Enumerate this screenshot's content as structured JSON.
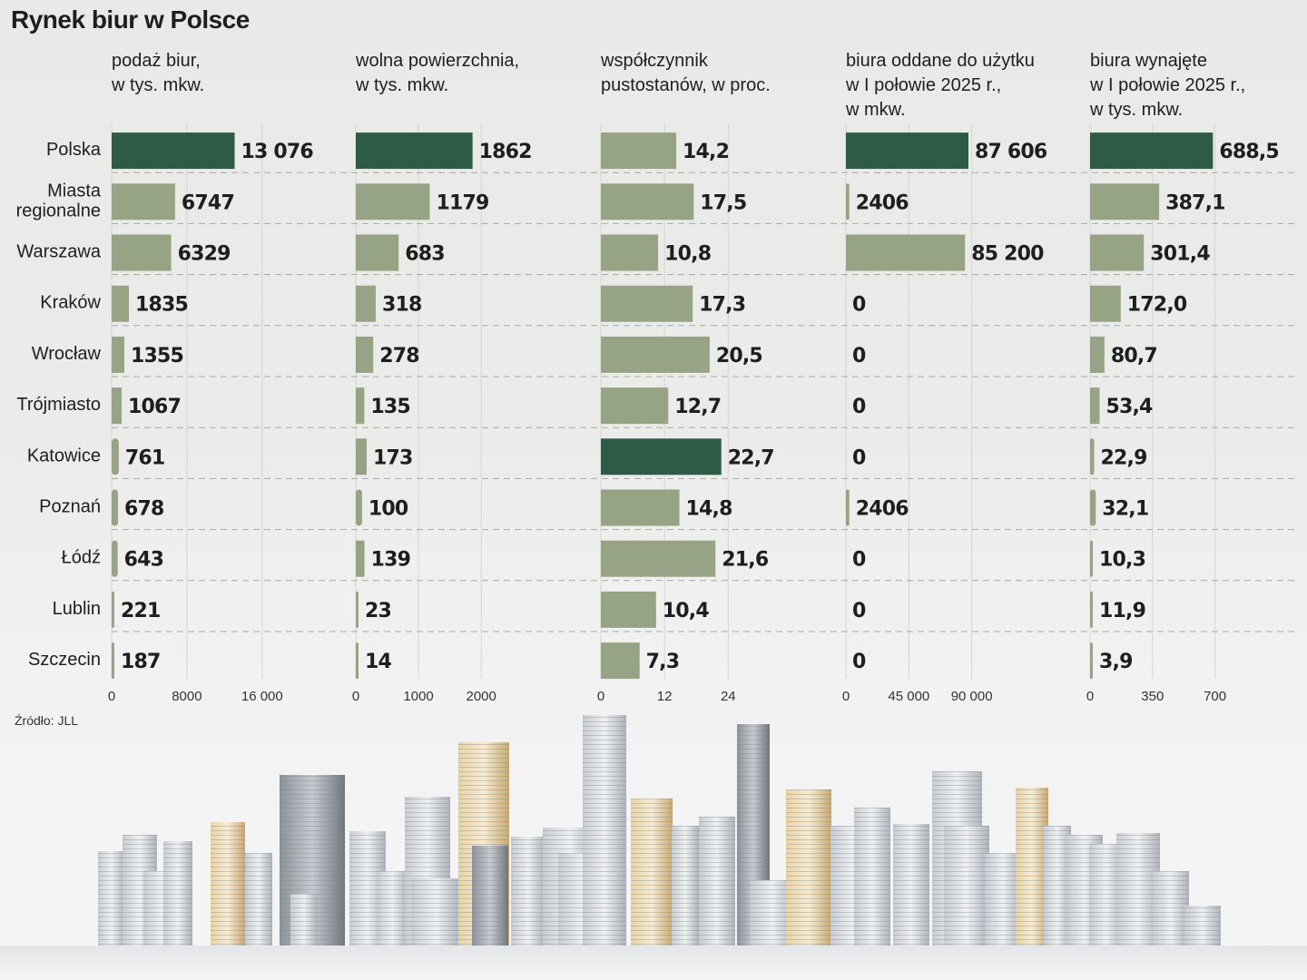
{
  "title": "Rynek biur w Polsce",
  "source": "Źródło: JLL",
  "colors": {
    "highlight": "#2e5b45",
    "bar": "#97a385",
    "background": "#ebecea",
    "text": "#1e1e1e",
    "grid": "#d4d5d3"
  },
  "chart_data": {
    "type": "bar",
    "orientation": "horizontal",
    "title": "Rynek biur w Polsce",
    "categories": [
      "Polska",
      "Miasta regionalne",
      "Warszawa",
      "Kraków",
      "Wrocław",
      "Trójmiasto",
      "Katowice",
      "Poznań",
      "Łódź",
      "Lublin",
      "Szczecin"
    ],
    "category_labels": [
      [
        "Polska"
      ],
      [
        "Miasta",
        "regionalne"
      ],
      [
        "Warszawa"
      ],
      [
        "Kraków"
      ],
      [
        "Wrocław"
      ],
      [
        "Trójmiasto"
      ],
      [
        "Katowice"
      ],
      [
        "Poznań"
      ],
      [
        "Łódź"
      ],
      [
        "Lublin"
      ],
      [
        "Szczecin"
      ]
    ],
    "grid": true,
    "panels": [
      {
        "name": "podaz-biur",
        "title": "podaż biur,\nw tys. mkw.",
        "values": [
          13076,
          6747,
          6329,
          1835,
          1355,
          1067,
          761,
          678,
          643,
          221,
          187
        ],
        "labels": [
          "13 076",
          "6747",
          "6329",
          "1835",
          "1355",
          "1067",
          "761",
          "678",
          "643",
          "221",
          "187"
        ],
        "highlight_index": 0,
        "xlim": [
          0,
          22000
        ],
        "ticks": [
          0,
          8000,
          16000
        ],
        "tick_labels": [
          "0",
          "8000",
          "16 000"
        ]
      },
      {
        "name": "wolna-powierzchnia",
        "title": "wolna powierzchnia,\nw tys. mkw.",
        "values": [
          1862,
          1179,
          683,
          318,
          278,
          135,
          173,
          100,
          139,
          23,
          14
        ],
        "labels": [
          "1862",
          "1179",
          "683",
          "318",
          "278",
          "135",
          "173",
          "100",
          "139",
          "23",
          "14"
        ],
        "highlight_index": 0,
        "xlim": [
          0,
          3300
        ],
        "ticks": [
          0,
          1000,
          2000
        ],
        "tick_labels": [
          "0",
          "1000",
          "2000"
        ]
      },
      {
        "name": "wspolczynnik-pustostanow",
        "title": "współczynnik\npustostanów, w proc.",
        "values": [
          14.2,
          17.5,
          10.8,
          17.3,
          20.5,
          12.7,
          22.7,
          14.8,
          21.6,
          10.4,
          7.3
        ],
        "labels": [
          "14,2",
          "17,5",
          "10,8",
          "17,3",
          "20,5",
          "12,7",
          "22,7",
          "14,8",
          "21,6",
          "10,4",
          "7,3"
        ],
        "highlight_index": 6,
        "xlim": [
          0,
          39
        ],
        "ticks": [
          0,
          12,
          24
        ],
        "tick_labels": [
          "0",
          "12",
          "24"
        ]
      },
      {
        "name": "biura-oddane",
        "title": "biura oddane do użytku\nw I połowie 2025 r.,\nw mkw.",
        "values": [
          87606,
          2406,
          85200,
          0,
          0,
          0,
          0,
          2406,
          0,
          0,
          0
        ],
        "labels": [
          "87 606",
          "2406",
          "85 200",
          "0",
          "0",
          "0",
          "0",
          "2406",
          "0",
          "0",
          "0"
        ],
        "highlight_index": 0,
        "xlim": [
          0,
          148000
        ],
        "ticks": [
          0,
          45000,
          90000
        ],
        "tick_labels": [
          "0",
          "45 000",
          "90 000"
        ]
      },
      {
        "name": "biura-wynajete",
        "title": "biura wynajęte\nw I połowie 2025 r.,\nw tys. mkw.",
        "values": [
          688.5,
          387.1,
          301.4,
          172.0,
          80.7,
          53.4,
          22.9,
          32.1,
          10.3,
          11.9,
          3.9
        ],
        "labels": [
          "688,5",
          "387,1",
          "301,4",
          "172,0",
          "80,7",
          "53,4",
          "22,9",
          "32,1",
          "10,3",
          "11,9",
          "3,9"
        ],
        "highlight_index": 0,
        "xlim": [
          0,
          1160
        ],
        "ticks": [
          0,
          350,
          700
        ],
        "tick_labels": [
          "0",
          "350",
          "700"
        ]
      }
    ]
  }
}
